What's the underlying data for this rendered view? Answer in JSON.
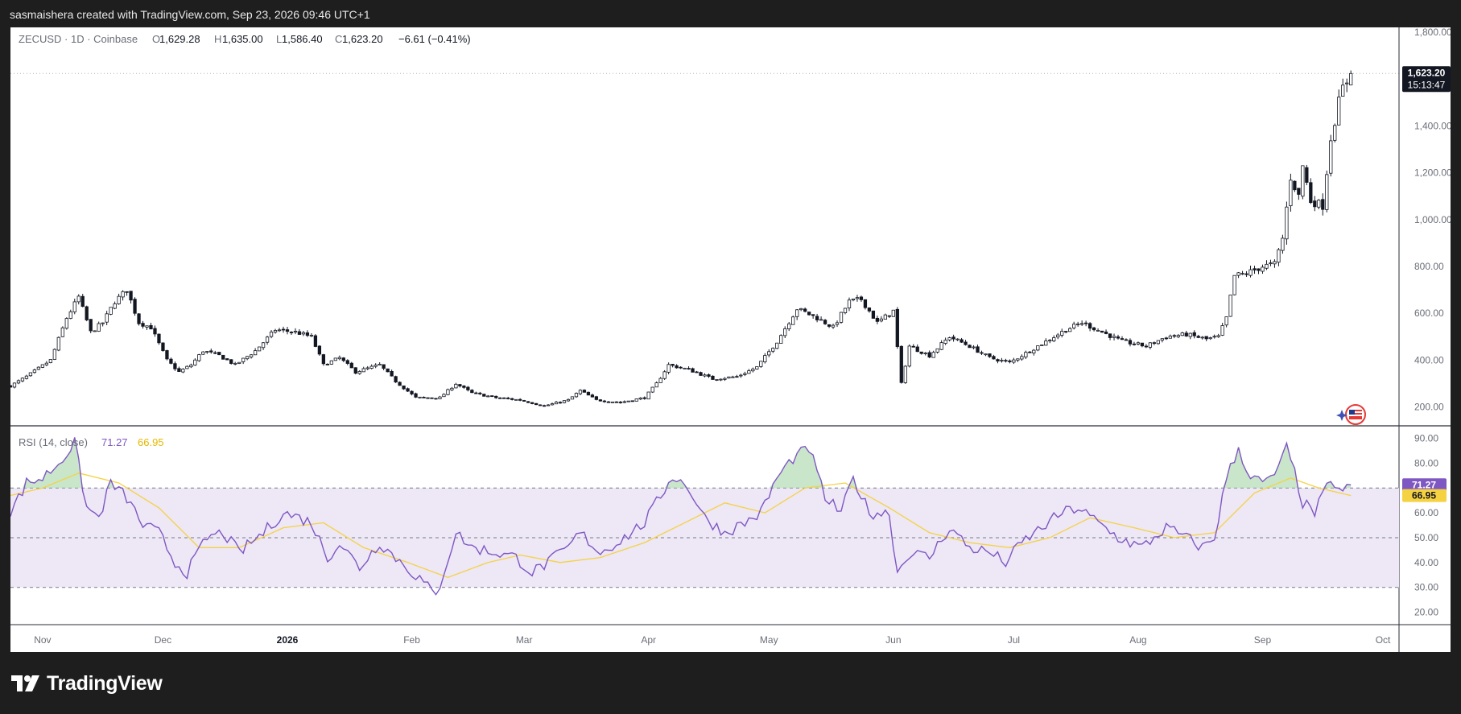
{
  "header": {
    "attribution": "sasmaishera created with TradingView.com, Sep 23, 2026 09:46 UTC+1"
  },
  "footer": {
    "brand": "TradingView"
  },
  "colors": {
    "candle": "#131722",
    "rsi_line": "#7e57c2",
    "rsi_ma": "#f5d242",
    "band_fill": "#ede7f6",
    "overbought_fill": "#a5d6a7"
  },
  "chart_data": {
    "type": "candlestick",
    "symbol": "ZECUSD",
    "timeframe": "1D",
    "exchange": "Coinbase",
    "legend": {
      "symbol_text": "ZECUSD · 1D · Coinbase",
      "o_label": "O",
      "o_value": "1,629.28",
      "h_label": "H",
      "h_value": "1,635.00",
      "l_label": "L",
      "l_value": "1,586.40",
      "c_label": "C",
      "c_value": "1,623.20",
      "change": "−6.61 (−0.41%)"
    },
    "last_price": 1623.2,
    "last_price_label": "1,623.20",
    "countdown": "15:13:47",
    "ylim": [
      120,
      1820
    ],
    "y_ticks": [
      200,
      400,
      600,
      800,
      1000,
      1200,
      1400,
      1800
    ],
    "y_tick_labels": [
      "200.00",
      "400.00",
      "600.00",
      "800.00",
      "1,000.00",
      "1,200.00",
      "1,400.00",
      "1,800.00"
    ],
    "x_tick_labels": [
      "Nov",
      "Dec",
      "2026",
      "Feb",
      "Mar",
      "Apr",
      "May",
      "Jun",
      "Jul",
      "Aug",
      "Sep",
      "Oct"
    ],
    "x_range": [
      "2025-10-24",
      "2026-10-05"
    ],
    "x_ticks": [
      "2025-11-01",
      "2025-12-01",
      "2026-01-01",
      "2026-02-01",
      "2026-03-01",
      "2026-04-01",
      "2026-05-01",
      "2026-06-01",
      "2026-07-01",
      "2026-08-01",
      "2026-09-01",
      "2026-10-01"
    ],
    "price_path": [
      [
        "2025-10-24",
        290
      ],
      [
        "2025-10-28",
        330
      ],
      [
        "2025-11-03",
        400
      ],
      [
        "2025-11-07",
        580
      ],
      [
        "2025-11-10",
        670
      ],
      [
        "2025-11-13",
        520
      ],
      [
        "2025-11-16",
        560
      ],
      [
        "2025-11-19",
        650
      ],
      [
        "2025-11-22",
        700
      ],
      [
        "2025-11-25",
        560
      ],
      [
        "2025-11-28",
        540
      ],
      [
        "2025-12-02",
        400
      ],
      [
        "2025-12-05",
        350
      ],
      [
        "2025-12-08",
        380
      ],
      [
        "2025-12-11",
        440
      ],
      [
        "2025-12-15",
        420
      ],
      [
        "2025-12-19",
        380
      ],
      [
        "2025-12-24",
        440
      ],
      [
        "2025-12-29",
        530
      ],
      [
        "2026-01-03",
        520
      ],
      [
        "2026-01-07",
        500
      ],
      [
        "2026-01-10",
        380
      ],
      [
        "2026-01-14",
        410
      ],
      [
        "2026-01-18",
        350
      ],
      [
        "2026-01-24",
        380
      ],
      [
        "2026-01-28",
        310
      ],
      [
        "2026-02-02",
        240
      ],
      [
        "2026-02-08",
        240
      ],
      [
        "2026-02-12",
        300
      ],
      [
        "2026-02-16",
        260
      ],
      [
        "2026-02-22",
        240
      ],
      [
        "2026-02-28",
        230
      ],
      [
        "2026-03-06",
        205
      ],
      [
        "2026-03-12",
        230
      ],
      [
        "2026-03-15",
        270
      ],
      [
        "2026-03-19",
        230
      ],
      [
        "2026-03-25",
        220
      ],
      [
        "2026-03-31",
        240
      ],
      [
        "2026-04-03",
        300
      ],
      [
        "2026-04-06",
        380
      ],
      [
        "2026-04-11",
        360
      ],
      [
        "2026-04-17",
        320
      ],
      [
        "2026-04-23",
        330
      ],
      [
        "2026-04-28",
        370
      ],
      [
        "2026-05-03",
        480
      ],
      [
        "2026-05-08",
        620
      ],
      [
        "2026-05-13",
        580
      ],
      [
        "2026-05-17",
        540
      ],
      [
        "2026-05-21",
        650
      ],
      [
        "2026-05-24",
        660
      ],
      [
        "2026-05-28",
        560
      ],
      [
        "2026-06-01",
        610
      ],
      [
        "2026-06-03",
        300
      ],
      [
        "2026-06-05",
        460
      ],
      [
        "2026-06-10",
        420
      ],
      [
        "2026-06-15",
        500
      ],
      [
        "2026-06-20",
        460
      ],
      [
        "2026-06-25",
        410
      ],
      [
        "2026-06-30",
        390
      ],
      [
        "2026-07-05",
        440
      ],
      [
        "2026-07-10",
        490
      ],
      [
        "2026-07-14",
        530
      ],
      [
        "2026-07-18",
        560
      ],
      [
        "2026-07-23",
        520
      ],
      [
        "2026-07-28",
        480
      ],
      [
        "2026-08-03",
        460
      ],
      [
        "2026-08-08",
        500
      ],
      [
        "2026-08-13",
        510
      ],
      [
        "2026-08-18",
        490
      ],
      [
        "2026-08-21",
        500
      ],
      [
        "2026-08-23",
        580
      ],
      [
        "2026-08-25",
        760
      ],
      [
        "2026-08-28",
        770
      ],
      [
        "2026-09-01",
        800
      ],
      [
        "2026-09-04",
        810
      ],
      [
        "2026-09-06",
        920
      ],
      [
        "2026-09-08",
        1180
      ],
      [
        "2026-09-10",
        1100
      ],
      [
        "2026-09-11",
        1230
      ],
      [
        "2026-09-13",
        1080
      ],
      [
        "2026-09-16",
        1060
      ],
      [
        "2026-09-18",
        1350
      ],
      [
        "2026-09-20",
        1500
      ],
      [
        "2026-09-21",
        1560
      ],
      [
        "2026-09-23",
        1623.2
      ]
    ],
    "rsi": {
      "label": "RSI (14, close)",
      "value": 71.27,
      "value_label": "71.27",
      "ma_value": 66.95,
      "ma_label": "66.95",
      "ylim": [
        15,
        95
      ],
      "y_ticks": [
        20,
        30,
        40,
        50,
        60,
        80,
        90
      ],
      "y_tick_labels": [
        "20.00",
        "30.00",
        "40.00",
        "50.00",
        "60.00",
        "80.00",
        "90.00"
      ],
      "bands": [
        30,
        50,
        70
      ],
      "line": [
        [
          "2025-10-24",
          60
        ],
        [
          "2025-10-28",
          72
        ],
        [
          "2025-11-01",
          74
        ],
        [
          "2025-11-05",
          80
        ],
        [
          "2025-11-09",
          88
        ],
        [
          "2025-11-12",
          62
        ],
        [
          "2025-11-15",
          58
        ],
        [
          "2025-11-18",
          72
        ],
        [
          "2025-11-22",
          66
        ],
        [
          "2025-11-26",
          55
        ],
        [
          "2025-11-30",
          52
        ],
        [
          "2025-12-04",
          40
        ],
        [
          "2025-12-07",
          36
        ],
        [
          "2025-12-12",
          50
        ],
        [
          "2025-12-16",
          52
        ],
        [
          "2025-12-20",
          44
        ],
        [
          "2025-12-26",
          52
        ],
        [
          "2025-12-31",
          60
        ],
        [
          "2026-01-04",
          58
        ],
        [
          "2026-01-07",
          56
        ],
        [
          "2026-01-11",
          42
        ],
        [
          "2026-01-14",
          48
        ],
        [
          "2026-01-19",
          38
        ],
        [
          "2026-01-24",
          48
        ],
        [
          "2026-01-28",
          42
        ],
        [
          "2026-02-04",
          32
        ],
        [
          "2026-02-07",
          26
        ],
        [
          "2026-02-12",
          52
        ],
        [
          "2026-02-16",
          46
        ],
        [
          "2026-02-22",
          44
        ],
        [
          "2026-02-27",
          42
        ],
        [
          "2026-03-03",
          36
        ],
        [
          "2026-03-07",
          40
        ],
        [
          "2026-03-12",
          46
        ],
        [
          "2026-03-15",
          52
        ],
        [
          "2026-03-20",
          44
        ],
        [
          "2026-03-26",
          50
        ],
        [
          "2026-03-31",
          56
        ],
        [
          "2026-04-03",
          64
        ],
        [
          "2026-04-07",
          75
        ],
        [
          "2026-04-11",
          70
        ],
        [
          "2026-04-15",
          58
        ],
        [
          "2026-04-20",
          52
        ],
        [
          "2026-04-25",
          56
        ],
        [
          "2026-04-29",
          60
        ],
        [
          "2026-05-03",
          74
        ],
        [
          "2026-05-07",
          82
        ],
        [
          "2026-05-11",
          86
        ],
        [
          "2026-05-15",
          66
        ],
        [
          "2026-05-19",
          60
        ],
        [
          "2026-05-22",
          74
        ],
        [
          "2026-05-26",
          60
        ],
        [
          "2026-05-31",
          60
        ],
        [
          "2026-06-02",
          36
        ],
        [
          "2026-06-05",
          44
        ],
        [
          "2026-06-10",
          42
        ],
        [
          "2026-06-15",
          54
        ],
        [
          "2026-06-20",
          46
        ],
        [
          "2026-06-25",
          44
        ],
        [
          "2026-06-29",
          40
        ],
        [
          "2026-07-03",
          48
        ],
        [
          "2026-07-08",
          54
        ],
        [
          "2026-07-13",
          60
        ],
        [
          "2026-07-17",
          62
        ],
        [
          "2026-07-22",
          56
        ],
        [
          "2026-07-27",
          50
        ],
        [
          "2026-08-02",
          46
        ],
        [
          "2026-08-08",
          54
        ],
        [
          "2026-08-13",
          50
        ],
        [
          "2026-08-17",
          46
        ],
        [
          "2026-08-20",
          50
        ],
        [
          "2026-08-23",
          74
        ],
        [
          "2026-08-26",
          86
        ],
        [
          "2026-08-29",
          74
        ],
        [
          "2026-09-02",
          72
        ],
        [
          "2026-09-05",
          78
        ],
        [
          "2026-09-07",
          86
        ],
        [
          "2026-09-09",
          76
        ],
        [
          "2026-09-11",
          64
        ],
        [
          "2026-09-14",
          60
        ],
        [
          "2026-09-17",
          70
        ],
        [
          "2026-09-19",
          72
        ],
        [
          "2026-09-21",
          68
        ],
        [
          "2026-09-23",
          71.27
        ]
      ],
      "ma": [
        [
          "2025-10-24",
          67
        ],
        [
          "2025-11-01",
          70
        ],
        [
          "2025-11-10",
          76
        ],
        [
          "2025-11-20",
          72
        ],
        [
          "2025-11-30",
          62
        ],
        [
          "2025-12-10",
          46
        ],
        [
          "2025-12-20",
          46
        ],
        [
          "2025-12-31",
          54
        ],
        [
          "2026-01-10",
          56
        ],
        [
          "2026-01-20",
          46
        ],
        [
          "2026-01-31",
          40
        ],
        [
          "2026-02-10",
          34
        ],
        [
          "2026-02-20",
          40
        ],
        [
          "2026-02-28",
          43
        ],
        [
          "2026-03-10",
          40
        ],
        [
          "2026-03-20",
          42
        ],
        [
          "2026-03-31",
          48
        ],
        [
          "2026-04-10",
          56
        ],
        [
          "2026-04-20",
          64
        ],
        [
          "2026-04-30",
          60
        ],
        [
          "2026-05-10",
          70
        ],
        [
          "2026-05-20",
          72
        ],
        [
          "2026-05-31",
          62
        ],
        [
          "2026-06-10",
          52
        ],
        [
          "2026-06-20",
          48
        ],
        [
          "2026-06-30",
          46
        ],
        [
          "2026-07-10",
          50
        ],
        [
          "2026-07-20",
          58
        ],
        [
          "2026-07-31",
          54
        ],
        [
          "2026-08-10",
          50
        ],
        [
          "2026-08-20",
          52
        ],
        [
          "2026-08-30",
          68
        ],
        [
          "2026-09-08",
          74
        ],
        [
          "2026-09-15",
          70
        ],
        [
          "2026-09-23",
          66.95
        ]
      ]
    }
  }
}
